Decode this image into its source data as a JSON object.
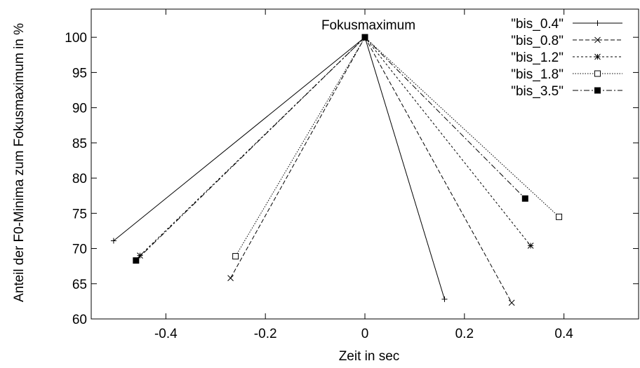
{
  "chart_data": {
    "type": "line",
    "title": "",
    "xlabel": "Zeit in sec",
    "ylabel": "Anteil der F0-Minima zum Fokusmaximum in %",
    "xlim": [
      -0.55,
      0.55
    ],
    "ylim": [
      60,
      104
    ],
    "xticks": [
      -0.4,
      -0.2,
      0,
      0.2,
      0.4
    ],
    "xtick_labels": [
      "-0.4",
      "-0.2",
      "0",
      "0.2",
      "0.4"
    ],
    "yticks": [
      60,
      65,
      70,
      75,
      80,
      85,
      90,
      95,
      100
    ],
    "ytick_labels": [
      "60",
      "65",
      "70",
      "75",
      "80",
      "85",
      "90",
      "95",
      "100"
    ],
    "grid": false,
    "legend_position": "top-right",
    "annotation": {
      "text": "Fokusmaximum",
      "x": 0,
      "y": 100
    },
    "series": [
      {
        "name": "\"bis_0.4\"",
        "marker": "plus",
        "dash": "",
        "x": [
          -0.505,
          0,
          0.16
        ],
        "y": [
          71.1,
          100,
          62.8
        ]
      },
      {
        "name": "\"bis_0.8\"",
        "marker": "cross",
        "dash": "6,3",
        "x": [
          -0.27,
          0,
          0.295
        ],
        "y": [
          65.8,
          100,
          62.3
        ]
      },
      {
        "name": "\"bis_1.2\"",
        "marker": "star",
        "dash": "3,3",
        "x": [
          -0.452,
          0,
          0.333
        ],
        "y": [
          69.0,
          100,
          70.4
        ]
      },
      {
        "name": "\"bis_1.8\"",
        "marker": "square-open",
        "dash": "1.5,2",
        "x": [
          -0.26,
          0,
          0.39
        ],
        "y": [
          68.9,
          100,
          74.5
        ]
      },
      {
        "name": "\"bis_3.5\"",
        "marker": "square-filled",
        "dash": "8,3,2,3",
        "x": [
          -0.46,
          0,
          0.322
        ],
        "y": [
          68.3,
          100,
          77.1
        ]
      }
    ]
  }
}
